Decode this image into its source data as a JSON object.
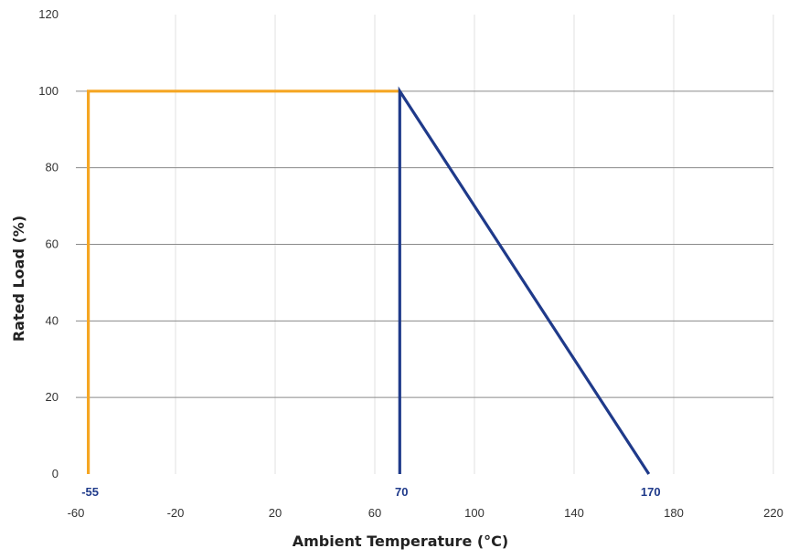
{
  "chart_data": {
    "type": "line",
    "title": "",
    "xlabel": "Ambient Temperature (°C)",
    "ylabel": "Rated Load (%)",
    "xlim": [
      -60,
      220
    ],
    "ylim": [
      0,
      120
    ],
    "x_ticks": [
      "-60",
      "-20",
      "20",
      "60",
      "100",
      "140",
      "180",
      "220"
    ],
    "y_ticks": [
      "0",
      "20",
      "40",
      "60",
      "80",
      "100",
      "120"
    ],
    "grid": {
      "horizontal": true,
      "vertical": true
    },
    "legend": "none",
    "series": [
      {
        "color": "#F5A623",
        "points": [
          [
            -55,
            0
          ],
          [
            -55,
            100
          ],
          [
            70,
            100
          ]
        ]
      },
      {
        "color": "#1F3A8A",
        "points": [
          [
            70,
            0
          ],
          [
            70,
            100
          ],
          [
            170,
            0
          ]
        ]
      }
    ],
    "annotations": [
      {
        "text": "-55",
        "x": -55,
        "color": "#1F3A8A"
      },
      {
        "text": "70",
        "x": 70,
        "color": "#1F3A8A"
      },
      {
        "text": "170",
        "x": 170,
        "color": "#1F3A8A"
      }
    ]
  }
}
